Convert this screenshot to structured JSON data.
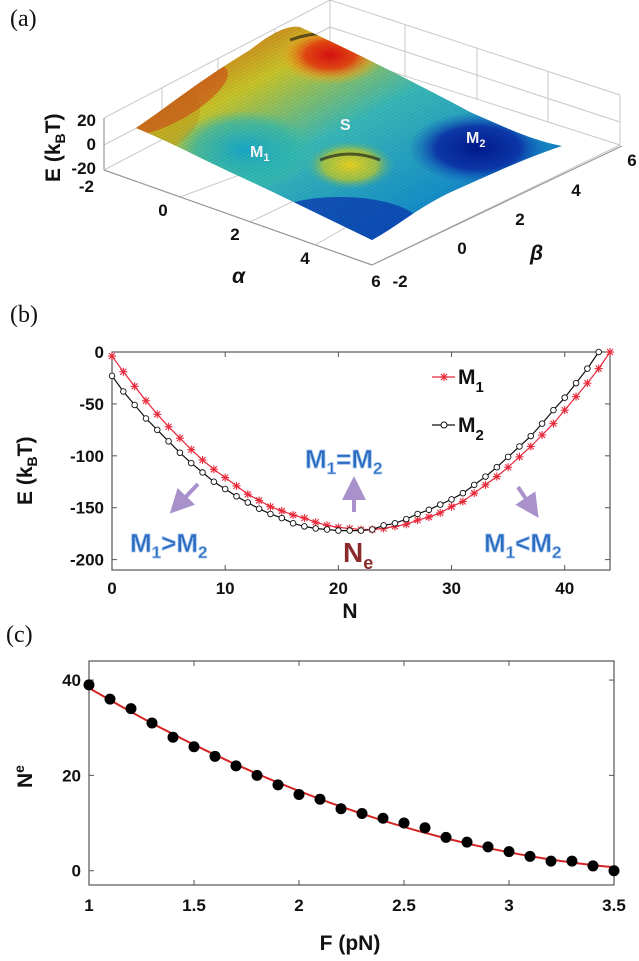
{
  "panels": {
    "a": "(a)",
    "b": "(b)",
    "c": "(c)"
  },
  "chart_data": [
    {
      "id": "a",
      "type": "surface3d",
      "title": "",
      "xlabel": "α",
      "ylabel": "β",
      "zlabel": "E (k_BT)",
      "zlabel_main": "E (k",
      "zlabel_sub": "B",
      "zlabel_end": "T)",
      "x_ticks": [
        "-2",
        "0",
        "2",
        "4",
        "6"
      ],
      "y_ticks": [
        "-2",
        "0",
        "2",
        "4",
        "6"
      ],
      "z_ticks": [
        "20",
        "0",
        "-20"
      ],
      "xlim": [
        -2,
        6
      ],
      "ylim": [
        -2,
        6
      ],
      "zlim": [
        -20,
        20
      ],
      "colormap": "jet",
      "annotations": [
        {
          "text": "M",
          "sub": "1",
          "meaning": "minimum 1"
        },
        {
          "text": "S",
          "sub": "",
          "meaning": "saddle"
        },
        {
          "text": "M",
          "sub": "2",
          "meaning": "minimum 2"
        }
      ]
    },
    {
      "id": "b",
      "type": "line",
      "xlabel": "N",
      "ylabel_main": "E (k",
      "ylabel_sub": "B",
      "ylabel_end": "T)",
      "xlim": [
        0,
        44
      ],
      "ylim": [
        -210,
        0
      ],
      "x_ticks": [
        0,
        10,
        20,
        30,
        40
      ],
      "y_ticks": [
        0,
        -50,
        -100,
        -150,
        -200
      ],
      "legend_position": "top-right",
      "series": [
        {
          "name": "M1",
          "label_main": "M",
          "label_sub": "1",
          "color": "#e8283a",
          "marker": "asterisk",
          "x": [
            0,
            1,
            2,
            3,
            4,
            5,
            6,
            7,
            8,
            9,
            10,
            11,
            12,
            13,
            14,
            15,
            16,
            17,
            18,
            19,
            20,
            21,
            22,
            23,
            24,
            25,
            26,
            27,
            28,
            29,
            30,
            31,
            32,
            33,
            34,
            35,
            36,
            37,
            38,
            39,
            40,
            41,
            42,
            43,
            44
          ],
          "y": [
            -4,
            -19,
            -33,
            -47,
            -60,
            -72,
            -83,
            -94,
            -104,
            -113,
            -121,
            -129,
            -137,
            -143,
            -149,
            -153,
            -157,
            -160,
            -164,
            -167,
            -169,
            -170,
            -171,
            -171,
            -170,
            -168,
            -166,
            -162,
            -159,
            -155,
            -149,
            -144,
            -136,
            -128,
            -120,
            -111,
            -101,
            -91,
            -80,
            -69,
            -56,
            -43,
            -30,
            -16,
            0
          ]
        },
        {
          "name": "M2",
          "label_main": "M",
          "label_sub": "2",
          "color": "#111111",
          "marker": "circle",
          "x": [
            0,
            1,
            2,
            3,
            4,
            5,
            6,
            7,
            8,
            9,
            10,
            11,
            12,
            13,
            14,
            15,
            16,
            17,
            18,
            19,
            20,
            21,
            22,
            23,
            24,
            25,
            26,
            27,
            28,
            29,
            30,
            31,
            32,
            33,
            34,
            35,
            36,
            37,
            38,
            39,
            40,
            41,
            42,
            43
          ],
          "y": [
            -23,
            -38,
            -51,
            -64,
            -75,
            -86,
            -97,
            -107,
            -116,
            -125,
            -132,
            -139,
            -145,
            -151,
            -156,
            -160,
            -165,
            -168,
            -170,
            -171,
            -172,
            -172,
            -172,
            -171,
            -167,
            -165,
            -161,
            -156,
            -152,
            -147,
            -142,
            -136,
            -128,
            -120,
            -111,
            -101,
            -91,
            -81,
            -69,
            -56,
            -44,
            -30,
            -16,
            0
          ]
        }
      ],
      "annotations": [
        {
          "id": "m1-gt-m2",
          "parts": [
            "M",
            "1",
            ">M",
            "2"
          ],
          "arrow": "down-left"
        },
        {
          "id": "m1-eq-m2",
          "parts": [
            "M",
            "1",
            "=M",
            "2"
          ],
          "arrow": "up"
        },
        {
          "id": "m1-lt-m2",
          "parts": [
            "M",
            "1",
            "<M",
            "2"
          ],
          "arrow": "down-right"
        },
        {
          "id": "ne",
          "parts": [
            "N",
            "e"
          ]
        }
      ],
      "annotation_colors": {
        "text": "#2a6bc1",
        "arrow": "#9b7fc4",
        "ne": "#8b2a2a"
      }
    },
    {
      "id": "c",
      "type": "scatter",
      "xlabel": "F (pN)",
      "ylabel_main": "N",
      "ylabel_sub": "e",
      "xlim": [
        1,
        3.5
      ],
      "ylim": [
        -3,
        44
      ],
      "x_ticks": [
        "1",
        "1.5",
        "2",
        "2.5",
        "3",
        "3.5"
      ],
      "x_tick_values": [
        1,
        1.5,
        2,
        2.5,
        3,
        3.5
      ],
      "y_ticks": [
        0,
        20,
        40
      ],
      "fit_color": "#d42424",
      "marker_color": "#000000",
      "x": [
        1.0,
        1.1,
        1.2,
        1.3,
        1.4,
        1.5,
        1.6,
        1.7,
        1.8,
        1.9,
        2.0,
        2.1,
        2.2,
        2.3,
        2.4,
        2.5,
        2.6,
        2.7,
        2.8,
        2.9,
        3.0,
        3.1,
        3.2,
        3.3,
        3.4,
        3.5
      ],
      "y": [
        39,
        36,
        34,
        31,
        28,
        26,
        24,
        22,
        20,
        18,
        16,
        15,
        13,
        12,
        11,
        10,
        9,
        7,
        6,
        5,
        4,
        3,
        2,
        2,
        1,
        0
      ]
    }
  ]
}
